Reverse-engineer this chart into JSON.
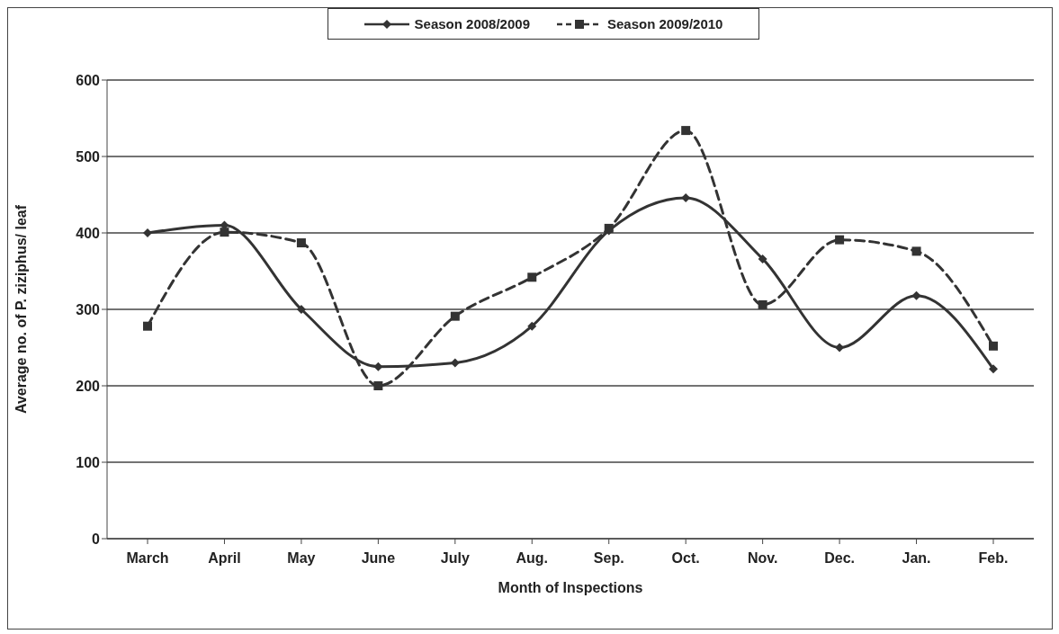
{
  "chart_data": {
    "type": "line",
    "xlabel": "Month of Inspections",
    "ylabel": "Average no. of P. ziziphus/ leaf",
    "categories": [
      "March",
      "April",
      "May",
      "June",
      "July",
      "Aug.",
      "Sep.",
      "Oct.",
      "Nov.",
      "Dec.",
      "Jan.",
      "Feb."
    ],
    "series": [
      {
        "name": "Season 2008/2009",
        "color": "#333333",
        "marker": "diamond",
        "line_style": "solid",
        "values": [
          400,
          410,
          300,
          225,
          230,
          278,
          403,
          446,
          366,
          250,
          318,
          222
        ]
      },
      {
        "name": "Season 2009/2010",
        "color": "#333333",
        "marker": "square",
        "line_style": "dashed",
        "values": [
          278,
          401,
          387,
          200,
          291,
          342,
          406,
          534,
          306,
          391,
          376,
          252
        ]
      }
    ],
    "ylim": [
      0,
      600
    ],
    "yticks": [
      0,
      100,
      200,
      300,
      400,
      500,
      600
    ],
    "grid": "y",
    "legend": "top"
  }
}
